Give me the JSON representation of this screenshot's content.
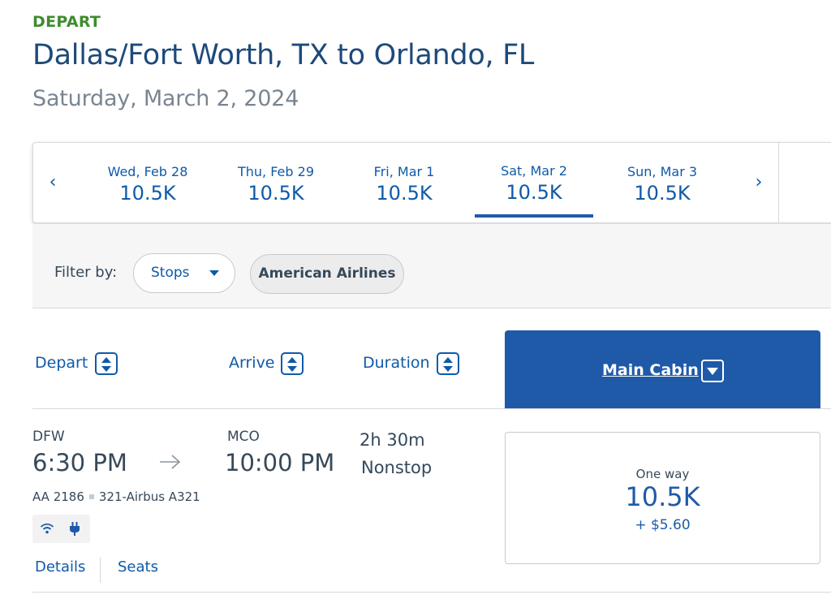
{
  "header": {
    "direction": "DEPART",
    "route": "Dallas/Fort Worth, TX to Orlando, FL",
    "date": "Saturday, March 2, 2024"
  },
  "date_strip": {
    "prev_icon": "chevron-left-icon",
    "next_icon": "chevron-right-icon",
    "days": [
      {
        "label": "Wed, Feb 28",
        "price": "10.5K"
      },
      {
        "label": "Thu, Feb 29",
        "price": "10.5K"
      },
      {
        "label": "Fri, Mar 1",
        "price": "10.5K"
      },
      {
        "label": "Sat, Mar 2",
        "price": "10.5K",
        "selected": true
      },
      {
        "label": "Sun, Mar 3",
        "price": "10.5K"
      }
    ]
  },
  "filters": {
    "label": "Filter by:",
    "stops": "Stops",
    "airline": "American Airlines"
  },
  "columns": {
    "depart": "Depart",
    "arrive": "Arrive",
    "duration": "Duration",
    "cabin": "Main Cabin"
  },
  "flight": {
    "origin": "DFW",
    "depart_time": "6:30 PM",
    "destination": "MCO",
    "arrive_time": "10:00 PM",
    "duration": "2h 30m",
    "stops": "Nonstop",
    "flight_number": "AA 2186",
    "aircraft": "321-Airbus A321",
    "amenities": [
      "wifi-icon",
      "power-outlet-icon"
    ],
    "details_link": "Details",
    "seats_link": "Seats",
    "fare": {
      "type": "One way",
      "miles": "10.5K",
      "tax": "+ $5.60"
    }
  },
  "colors": {
    "accent_blue": "#1f5aa8",
    "link_blue": "#0f5aa8",
    "depart_green": "#3f8c2e",
    "title_blue": "#1d4a7a"
  }
}
